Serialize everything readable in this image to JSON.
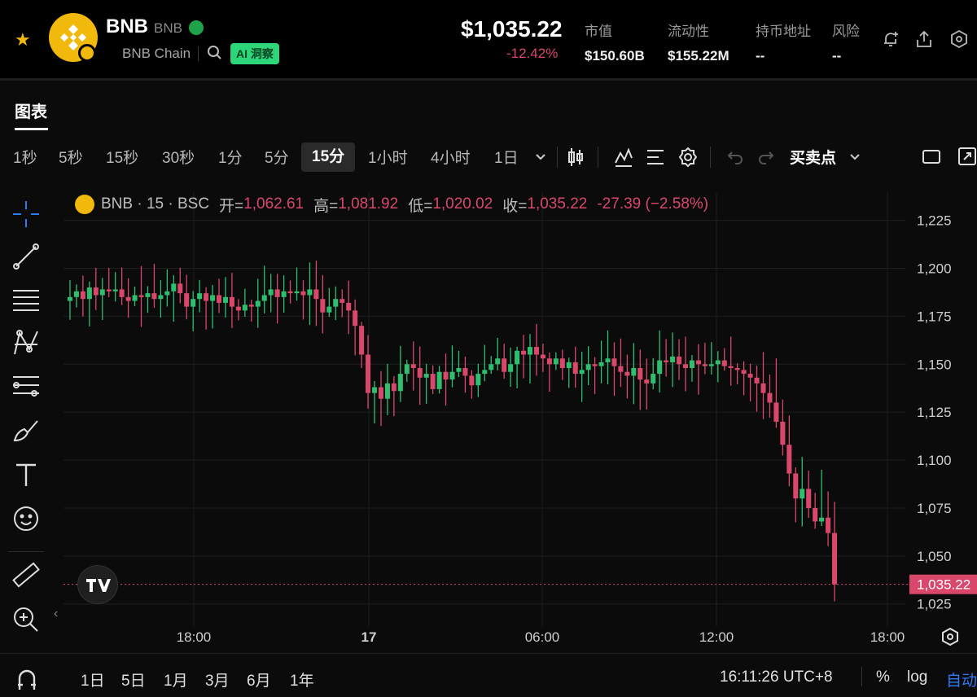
{
  "token": {
    "name": "BNB",
    "symbol": "BNB",
    "chain": "BNB Chain",
    "ai_label": "AI 洞察"
  },
  "header": {
    "price": "$1,035.22",
    "change": "-12.42%",
    "stats": [
      {
        "label": "市值",
        "value": "$150.60B"
      },
      {
        "label": "流动性",
        "value": "$155.22M"
      },
      {
        "label": "持币地址",
        "value": "--"
      },
      {
        "label": "风险",
        "value": "--"
      }
    ]
  },
  "tabs": [
    "图表"
  ],
  "toolbar": {
    "intervals": [
      "1秒",
      "5秒",
      "15秒",
      "30秒",
      "1分",
      "5分",
      "15分",
      "1小时",
      "4小时",
      "1日"
    ],
    "active": "15分",
    "trade_points": "买卖点"
  },
  "legend": {
    "title": "BNB · 15 · BSC",
    "open_label": "开=",
    "open": "1,062.61",
    "high_label": "高=",
    "high": "1,081.92",
    "low_label": "低=",
    "low": "1,020.02",
    "close_label": "收=",
    "close": "1,035.22",
    "change": "-27.39 (−2.58%)"
  },
  "chart_data": {
    "type": "candlestick",
    "y_ticks": [
      "1,225",
      "1,200",
      "1,175",
      "1,150",
      "1,125",
      "1,100",
      "1,075",
      "1,050",
      "1,025"
    ],
    "y_tick_values": [
      1225,
      1200,
      1175,
      1150,
      1125,
      1100,
      1075,
      1050,
      1025
    ],
    "x_ticks": [
      "18:00",
      "17",
      "06:00",
      "12:00",
      "18:00"
    ],
    "ylim": [
      1013,
      1238
    ],
    "last_price_label": "1,035.22",
    "last_price": 1035.22,
    "up_color": "#2fbd6e",
    "down_color": "#d9476b",
    "closes": [
      1185,
      1188,
      1184,
      1190,
      1186,
      1189,
      1188,
      1189,
      1185,
      1183,
      1186,
      1185,
      1187,
      1184,
      1186,
      1188,
      1192,
      1187,
      1180,
      1184,
      1187,
      1183,
      1186,
      1182,
      1185,
      1180,
      1178,
      1181,
      1180,
      1183,
      1186,
      1189,
      1185,
      1188,
      1187,
      1188,
      1186,
      1189,
      1184,
      1177,
      1180,
      1184,
      1182,
      1178,
      1170,
      1155,
      1135,
      1138,
      1132,
      1140,
      1136,
      1145,
      1150,
      1148,
      1143,
      1145,
      1137,
      1146,
      1142,
      1146,
      1148,
      1144,
      1139,
      1145,
      1147,
      1150,
      1153,
      1146,
      1150,
      1157,
      1155,
      1159,
      1155,
      1153,
      1150,
      1153,
      1148,
      1151,
      1145,
      1147,
      1150,
      1149,
      1151,
      1153,
      1149,
      1146,
      1144,
      1148,
      1142,
      1140,
      1145,
      1152,
      1151,
      1154,
      1150,
      1148,
      1152,
      1150,
      1149,
      1150,
      1152,
      1149,
      1148,
      1147,
      1145,
      1143,
      1140,
      1135,
      1130,
      1120,
      1108,
      1093,
      1080,
      1085,
      1075,
      1068,
      1070,
      1062,
      1035.22
    ]
  },
  "bottom": {
    "ranges": [
      "1日",
      "5日",
      "1月",
      "3月",
      "6月",
      "1年"
    ],
    "clock": "16:11:26 UTC+8",
    "pct": "%",
    "log": "log",
    "auto": "自动"
  }
}
